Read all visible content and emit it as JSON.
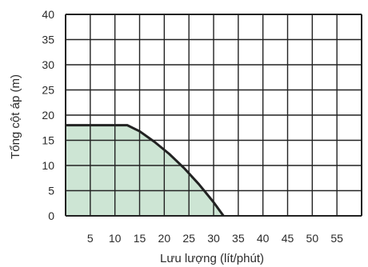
{
  "chart_data": {
    "type": "area",
    "title": "",
    "xlabel": "Lưu lượng (lít/phút)",
    "ylabel": "Tổng cột áp (m)",
    "xlim": [
      0,
      60
    ],
    "ylim": [
      0,
      40
    ],
    "x_ticks": [
      5,
      10,
      15,
      20,
      25,
      30,
      35,
      40,
      45,
      50,
      55
    ],
    "y_ticks": [
      0,
      5,
      10,
      15,
      20,
      25,
      30,
      35,
      40
    ],
    "grid": true,
    "series": [
      {
        "x": [
          0,
          12.5,
          15,
          18,
          21,
          24,
          27,
          30,
          32
        ],
        "y": [
          18,
          18,
          16.8,
          14.7,
          12.3,
          9.5,
          6.3,
          2.7,
          0
        ],
        "fill": "#cde5d4",
        "line": "#222222"
      }
    ]
  }
}
